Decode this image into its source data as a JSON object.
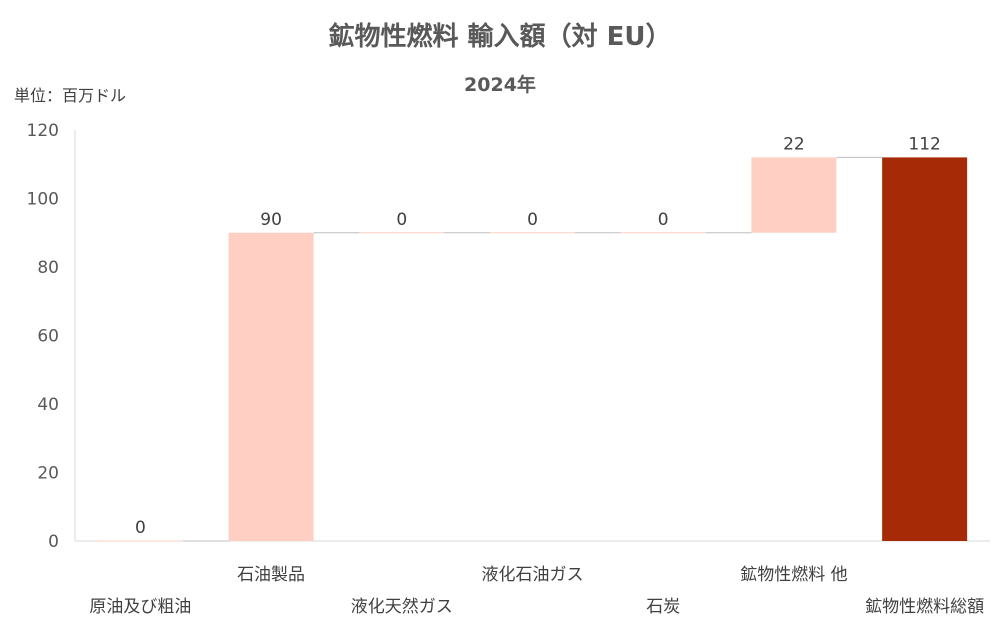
{
  "title": "鉱物性燃料 輸入額（対 EU）",
  "subtitle": "2024年",
  "unit_label": "単位：百万ドル",
  "chart_data": {
    "type": "waterfall",
    "categories": [
      "原油及び粗油",
      "石油製品",
      "液化天然ガス",
      "液化石油ガス",
      "石炭",
      "鉱物性燃料 他",
      "鉱物性燃料総額"
    ],
    "values": [
      0,
      90,
      0,
      0,
      0,
      22,
      112
    ],
    "data_labels": [
      "0",
      "90",
      "0",
      "0",
      "0",
      "22",
      "112"
    ],
    "is_total": [
      false,
      false,
      false,
      false,
      false,
      false,
      true
    ],
    "yticks": [
      0,
      20,
      40,
      60,
      80,
      100,
      120
    ],
    "ylim": [
      0,
      120
    ],
    "grid": false,
    "colors": {
      "increment": "#FFCFC3",
      "total": "#A52A05",
      "connector": "#BFBFBF",
      "axis": "#D9D9D9"
    }
  }
}
